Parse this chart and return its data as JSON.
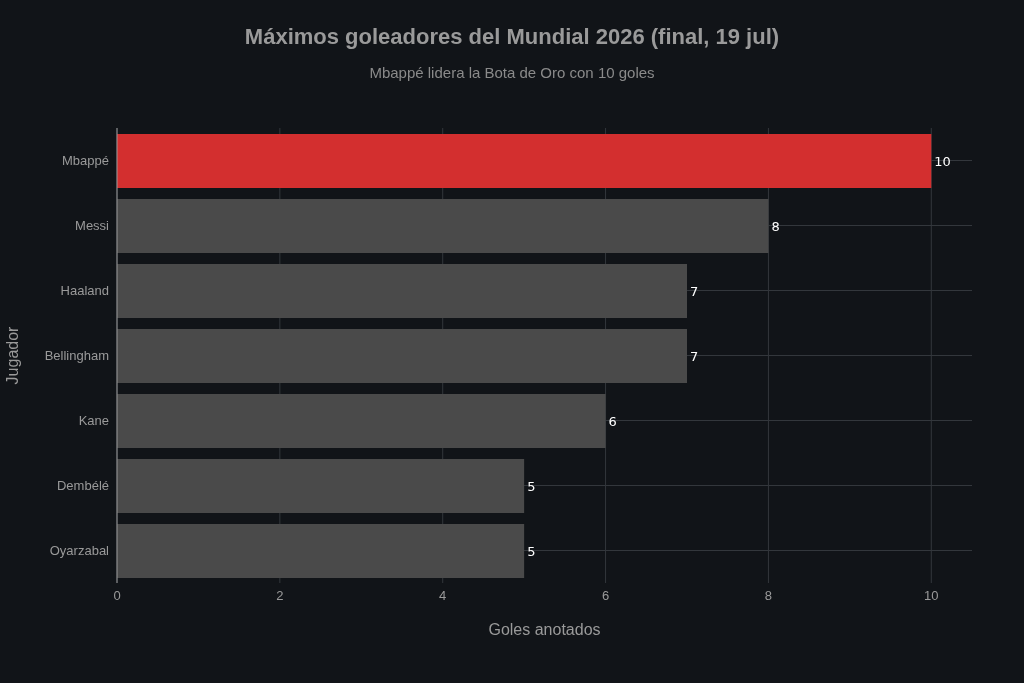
{
  "chart_data": {
    "type": "bar",
    "orientation": "horizontal",
    "title": "Máximos goleadores del Mundial 2026 (final, 19 jul)",
    "subtitle": "Mbappé lidera la Bota de Oro con 10 goles",
    "xlabel": "Goles anotados",
    "ylabel": "Jugador",
    "categories": [
      "Mbappé",
      "Messi",
      "Haaland",
      "Bellingham",
      "Kane",
      "Dembélé",
      "Oyarzabal"
    ],
    "values": [
      10,
      8,
      7,
      7,
      6,
      5,
      5
    ],
    "colors": [
      "#d32f2f",
      "#4a4a4a",
      "#4a4a4a",
      "#4a4a4a",
      "#4a4a4a",
      "#4a4a4a",
      "#4a4a4a"
    ],
    "xlim": [
      0,
      10.5
    ],
    "xticks": [
      0,
      2,
      4,
      6,
      8,
      10
    ],
    "grid": true,
    "data_labels": true
  }
}
